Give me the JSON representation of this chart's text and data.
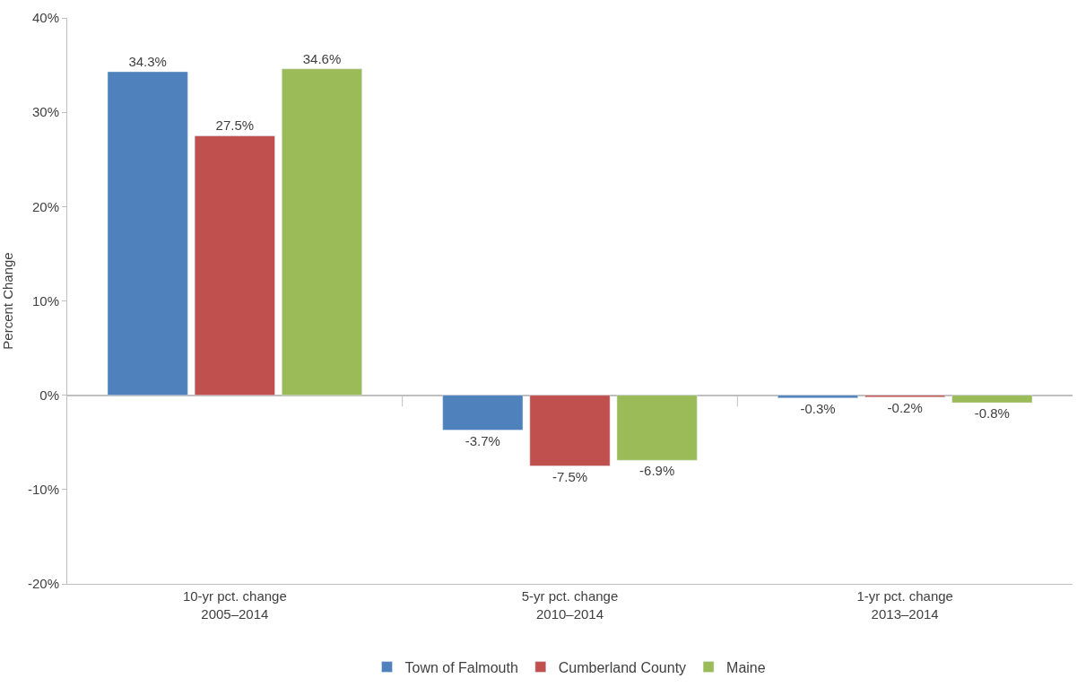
{
  "chart_data": {
    "type": "bar",
    "ylabel": "Percent Change",
    "categories": [
      "10-yr pct. change\n2005–2014",
      "5-yr pct. change\n2010–2014",
      "1-yr pct. change\n2013–2014"
    ],
    "series": [
      {
        "name": "Town of Falmouth",
        "color": "#4f81bd",
        "values": [
          34.3,
          -3.7,
          -0.3
        ],
        "value_labels": [
          "34.3%",
          "-3.7%",
          "-0.3%"
        ]
      },
      {
        "name": "Cumberland County",
        "color": "#c0504d",
        "values": [
          27.5,
          -7.5,
          -0.2
        ],
        "value_labels": [
          "27.5%",
          "-7.5%",
          "-0.2%"
        ]
      },
      {
        "name": "Maine",
        "color": "#9bbb59",
        "values": [
          34.6,
          -6.9,
          -0.8
        ],
        "value_labels": [
          "34.6%",
          "-6.9%",
          "-0.8%"
        ]
      }
    ],
    "ylim": [
      -20,
      40
    ],
    "yticks": [
      {
        "value": -20,
        "label": "-20%"
      },
      {
        "value": -10,
        "label": "-10%"
      },
      {
        "value": 0,
        "label": "0%"
      },
      {
        "value": 10,
        "label": "10%"
      },
      {
        "value": 20,
        "label": "20%"
      },
      {
        "value": 30,
        "label": "30%"
      },
      {
        "value": 40,
        "label": "40%"
      }
    ],
    "legend": "bottom"
  }
}
